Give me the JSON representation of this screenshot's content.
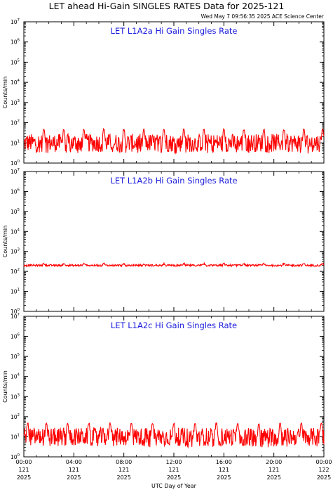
{
  "header": {
    "title": "LET ahead Hi-Gain SINGLES RATES Data for 2025-121",
    "timestamp": "Wed May  7 09:56:35 2025 ACE Science Center"
  },
  "colors": {
    "series": "#ff0000",
    "panel_title": "#1a1adc",
    "axes": "#000000"
  },
  "chart_data": [
    {
      "type": "line",
      "title": "LET L1A2a Hi Gain Singles Rate",
      "xlabel": "",
      "ylabel": "Counts/min",
      "yscale": "log",
      "ylim": [
        1,
        10000000
      ],
      "xlim": [
        0,
        24
      ],
      "grid": false,
      "series": [
        {
          "baseline": 10,
          "noise_range": [
            3,
            30
          ],
          "spike_value": 45,
          "spike_period_hours": 1.6,
          "spike_times_hours": [
            1.6,
            3.2,
            4.8,
            6.4,
            8.0,
            9.6,
            11.2,
            12.8,
            14.4,
            16.0,
            17.6,
            19.2,
            20.8,
            22.4,
            23.9
          ]
        }
      ]
    },
    {
      "type": "line",
      "title": "LET L1A2b Hi Gain Singles Rate",
      "xlabel": "",
      "ylabel": "Counts/min",
      "yscale": "log",
      "ylim": [
        1,
        10000000
      ],
      "xlim": [
        0,
        24
      ],
      "grid": false,
      "series": [
        {
          "baseline": 200,
          "noise_range": [
            180,
            230
          ],
          "spike_value": 240,
          "spike_period_hours": 1.6,
          "spike_times_hours": [
            1.6,
            3.2,
            4.8,
            6.4,
            8.0,
            9.6,
            11.2,
            12.8,
            14.4,
            16.0,
            17.6,
            19.2,
            20.8,
            22.4,
            23.9
          ]
        }
      ]
    },
    {
      "type": "line",
      "title": "LET L1A2c Hi Gain Singles Rate",
      "xlabel": "UTC Day of Year",
      "ylabel": "Counts/min",
      "yscale": "log",
      "ylim": [
        1,
        10000000
      ],
      "xlim": [
        0,
        24
      ],
      "grid": false,
      "xticks": [
        {
          "t": 0,
          "label": [
            "00:00",
            "121",
            "2025"
          ]
        },
        {
          "t": 4,
          "label": [
            "04:00",
            "121",
            "2025"
          ]
        },
        {
          "t": 8,
          "label": [
            "08:00",
            "121",
            "2025"
          ]
        },
        {
          "t": 12,
          "label": [
            "12:00",
            "121",
            "2025"
          ]
        },
        {
          "t": 16,
          "label": [
            "16:00",
            "121",
            "2025"
          ]
        },
        {
          "t": 20,
          "label": [
            "20:00",
            "121",
            "2025"
          ]
        },
        {
          "t": 24,
          "label": [
            "00:00",
            "122",
            "2025"
          ]
        }
      ],
      "series": [
        {
          "baseline": 10,
          "noise_range": [
            3,
            30
          ],
          "spike_value": 45,
          "spike_period_hours": 1.6,
          "spike_times_hours": [
            0.3,
            1.8,
            3.5,
            5.2,
            6.9,
            8.6,
            10.3,
            12.0,
            13.7,
            15.4,
            17.1,
            18.8,
            20.5,
            22.2,
            23.8
          ]
        }
      ]
    }
  ]
}
